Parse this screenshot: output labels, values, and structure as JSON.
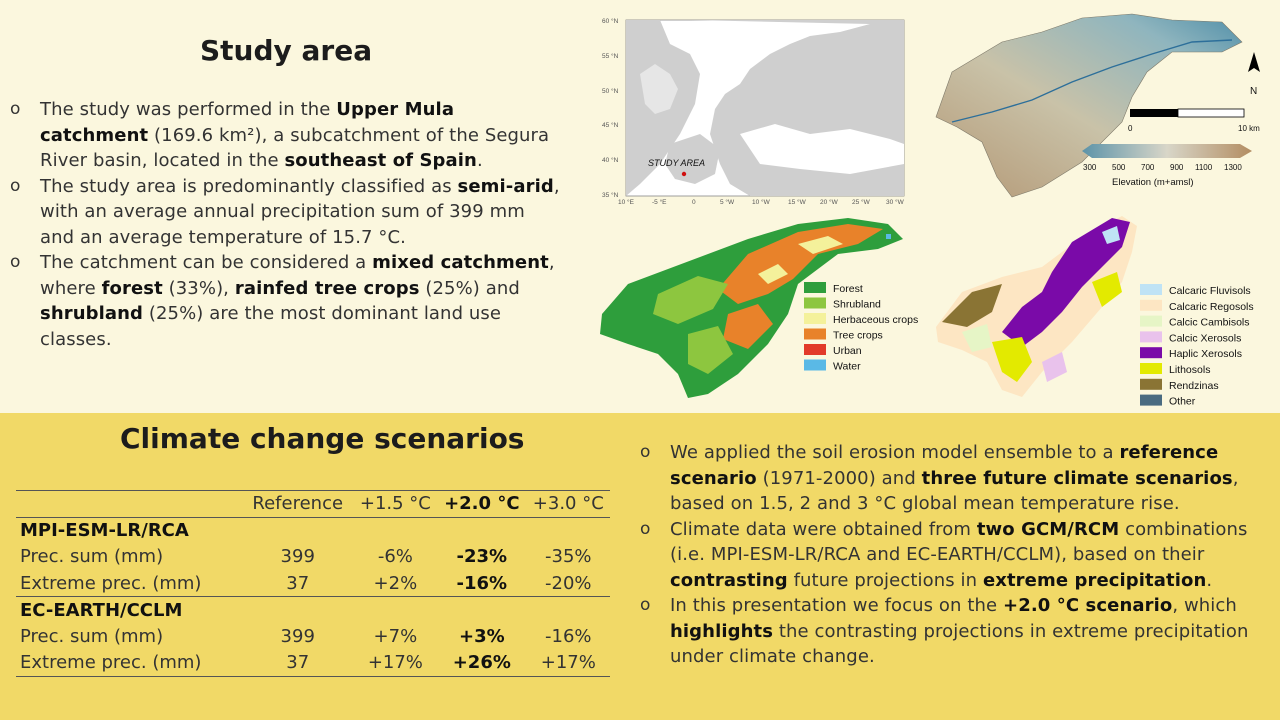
{
  "study_area": {
    "title": "Study area",
    "bullets": [
      {
        "parts": [
          {
            "t": "The study was performed in the "
          },
          {
            "t": "Upper Mula catchment",
            "b": true
          },
          {
            "t": " (169.6 km²), a subcatchment of the Segura River basin, located in the "
          },
          {
            "t": "southeast of Spain",
            "b": true
          },
          {
            "t": "."
          }
        ]
      },
      {
        "parts": [
          {
            "t": "The study area is predominantly classified as "
          },
          {
            "t": "semi-arid",
            "b": true
          },
          {
            "t": ", with an average annual precipitation sum of 399 mm and an average temperature of 15.7 °C."
          }
        ]
      },
      {
        "parts": [
          {
            "t": "The catchment can be considered a "
          },
          {
            "t": "mixed catchment",
            "b": true
          },
          {
            "t": ", where "
          },
          {
            "t": "forest",
            "b": true
          },
          {
            "t": " (33%), "
          },
          {
            "t": "rainfed tree crops",
            "b": true
          },
          {
            "t": " (25%) and "
          },
          {
            "t": "shrubland",
            "b": true
          },
          {
            "t": " (25%) are the most dominant land use classes."
          }
        ]
      }
    ]
  },
  "climate": {
    "title": "Climate change scenarios",
    "table": {
      "headers": [
        "",
        "Reference",
        "+1.5 °C",
        "+2.0 °C",
        "+3.0 °C"
      ],
      "groups": [
        {
          "name": "MPI-ESM-LR/RCA",
          "rows": [
            {
              "label": "Prec. sum (mm)",
              "values": [
                "399",
                "-6%",
                "-23%",
                "-35%"
              ]
            },
            {
              "label": "Extreme prec. (mm)",
              "values": [
                "37",
                "+2%",
                "-16%",
                "-20%"
              ]
            }
          ]
        },
        {
          "name": "EC-EARTH/CCLM",
          "rows": [
            {
              "label": "Prec. sum (mm)",
              "values": [
                "399",
                "+7%",
                "+3%",
                "-16%"
              ]
            },
            {
              "label": "Extreme prec. (mm)",
              "values": [
                "37",
                "+17%",
                "+26%",
                "+17%"
              ]
            }
          ]
        }
      ]
    },
    "bullets": [
      {
        "parts": [
          {
            "t": "We applied the soil erosion model ensemble to a "
          },
          {
            "t": "reference scenario",
            "b": true
          },
          {
            "t": " (1971-2000) and "
          },
          {
            "t": "three future climate scenarios",
            "b": true
          },
          {
            "t": ", based on 1.5, 2 and 3 °C global mean temperature rise."
          }
        ]
      },
      {
        "parts": [
          {
            "t": "Climate data were obtained from "
          },
          {
            "t": "two GCM/RCM",
            "b": true
          },
          {
            "t": " combinations (i.e. MPI-ESM-LR/RCA and EC-EARTH/CCLM), based on their "
          },
          {
            "t": "contrasting",
            "b": true
          },
          {
            "t": " future projections in "
          },
          {
            "t": "extreme precipitation",
            "b": true
          },
          {
            "t": "."
          }
        ]
      },
      {
        "parts": [
          {
            "t": "In this presentation we focus on the "
          },
          {
            "t": "+2.0 °C scenario",
            "b": true
          },
          {
            "t": ", which "
          },
          {
            "t": "highlights",
            "b": true
          },
          {
            "t": " the contrasting projections in extreme precipitation under climate change."
          }
        ]
      }
    ]
  },
  "map_europe": {
    "label": "STUDY AREA",
    "lat_labels": [
      "60 °N",
      "55 °N",
      "50 °N",
      "45 °N",
      "40 °N",
      "35 °N"
    ],
    "lon_labels": [
      "10 °E",
      "-5 °E",
      "0",
      "5 °W",
      "10 °W",
      "15 °W",
      "20 °W",
      "25 °W",
      "30 °W"
    ]
  },
  "map_dem": {
    "north": "N",
    "scale_start": "0",
    "scale_end": "10 km",
    "elev_ticks": [
      "300",
      "500",
      "700",
      "900",
      "1100",
      "1300"
    ],
    "elev_title": "Elevation (m+amsl)"
  },
  "map_landuse": {
    "legend": [
      {
        "name": "Forest",
        "color": "#2e9e3c"
      },
      {
        "name": "Shrubland",
        "color": "#8dc63f"
      },
      {
        "name": "Herbaceous crops",
        "color": "#f4f19b"
      },
      {
        "name": "Tree crops",
        "color": "#e8822a"
      },
      {
        "name": "Urban",
        "color": "#e23a2a"
      },
      {
        "name": "Water",
        "color": "#5ab9e6"
      }
    ]
  },
  "map_soil": {
    "legend": [
      {
        "name": "Calcaric Fluvisols",
        "color": "#bfe3f5"
      },
      {
        "name": "Calcaric Regosols",
        "color": "#fde6c3"
      },
      {
        "name": "Calcic Cambisols",
        "color": "#e6f5c6"
      },
      {
        "name": "Calcic Xerosols",
        "color": "#e9c2ec"
      },
      {
        "name": "Haplic Xerosols",
        "color": "#7a0aa8"
      },
      {
        "name": "Lithosols",
        "color": "#e3ea00"
      },
      {
        "name": "Rendzinas",
        "color": "#8a7434"
      },
      {
        "name": "Other",
        "color": "#4a6b80"
      }
    ]
  }
}
